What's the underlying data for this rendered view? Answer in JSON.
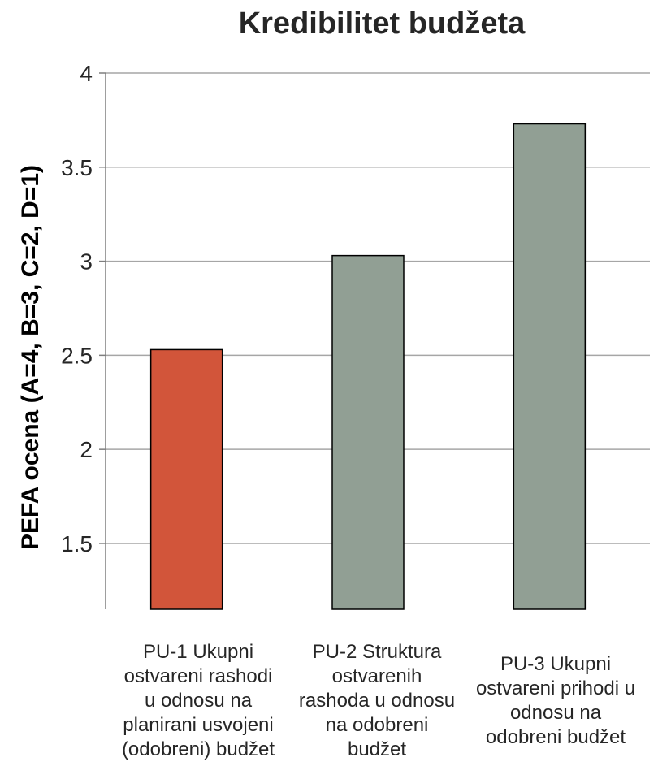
{
  "chart_data": {
    "type": "bar",
    "title": "Kredibilitet budžeta",
    "ylabel": "PEFA ocena  (A=4, B=3, C=2, D=1)",
    "xlabel": "",
    "ylim": [
      1.15,
      4
    ],
    "yticks": [
      1.5,
      2,
      2.5,
      3,
      3.5,
      4
    ],
    "ytick_labels": [
      "1.5",
      "2",
      "2.5",
      "3",
      "3.5",
      "4"
    ],
    "categories": [
      "PU-1 Ukupni\nostvareni rashodi\nu odnosu na\nplanirani usvojeni\n(odobreni) budžet",
      "PU-2 Struktura\nostvarenih\nrashoda u odnosu\nna odobreni\nbudžet",
      "PU-3 Ukupni\nostvareni prihodi u\nodnosu na\nodobreni budžet"
    ],
    "values": [
      2.53,
      3.03,
      3.73
    ],
    "grid": true,
    "legend": "none",
    "colors": {
      "bar_highlight": "#D2553A",
      "bar_default": "#919F94",
      "bar_outline": "#000000",
      "gridline": "#A6A6A6",
      "axis": "#7F7F7F"
    },
    "highlight_index": 0
  }
}
